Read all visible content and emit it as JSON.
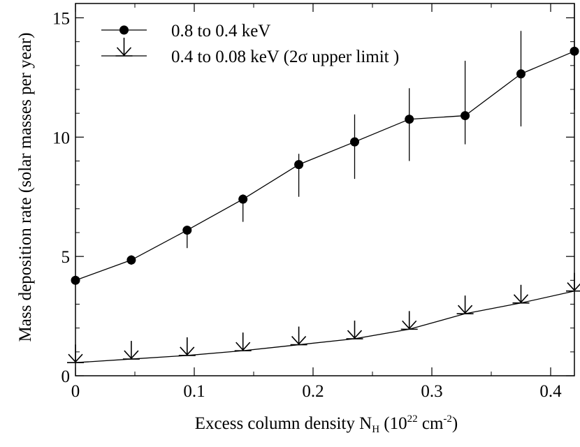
{
  "chart_data": {
    "type": "line",
    "title": "",
    "xlabel": {
      "prefix": "Excess column density N",
      "subscript": "H",
      "unit_open": " (10",
      "unit_exp": "22",
      "unit_mid": " cm",
      "unit_exp2": "-2",
      "unit_close": ")"
    },
    "ylabel": "Mass deposition rate (solar masses per year)",
    "xlim": [
      0,
      0.42
    ],
    "ylim": [
      0,
      15.6
    ],
    "xticks": [
      0,
      0.1,
      0.2,
      0.3,
      0.4
    ],
    "xtick_labels": [
      "0",
      "0.1",
      "0.2",
      "0.3",
      "0.4"
    ],
    "yticks": [
      0,
      5,
      10,
      15
    ],
    "ytick_labels": [
      "0",
      "5",
      "10",
      "15"
    ],
    "grid": false,
    "legend_position": "top-left",
    "series": [
      {
        "name": "0.8 to 0.4 keV",
        "marker": "filled-circle",
        "x": [
          0,
          0.047,
          0.094,
          0.141,
          0.188,
          0.235,
          0.281,
          0.328,
          0.375,
          0.42
        ],
        "y": [
          4.0,
          4.85,
          6.1,
          7.4,
          8.85,
          9.8,
          10.75,
          10.9,
          12.65,
          13.6
        ],
        "err_low": [
          0.2,
          0.2,
          0.75,
          0.95,
          1.35,
          1.55,
          1.75,
          1.2,
          2.2,
          2.45
        ],
        "err_high": [
          0.2,
          0.2,
          0.0,
          0.2,
          0.45,
          1.15,
          1.3,
          2.3,
          1.8,
          2.2
        ]
      },
      {
        "name": "0.4 to 0.08 keV (2σ upper limit )",
        "marker": "upper-limit-arrow",
        "x": [
          0,
          0.047,
          0.094,
          0.141,
          0.188,
          0.235,
          0.281,
          0.328,
          0.375,
          0.42
        ],
        "y": [
          0.55,
          0.7,
          0.85,
          1.05,
          1.3,
          1.55,
          1.95,
          2.6,
          3.05,
          3.55
        ]
      }
    ]
  }
}
